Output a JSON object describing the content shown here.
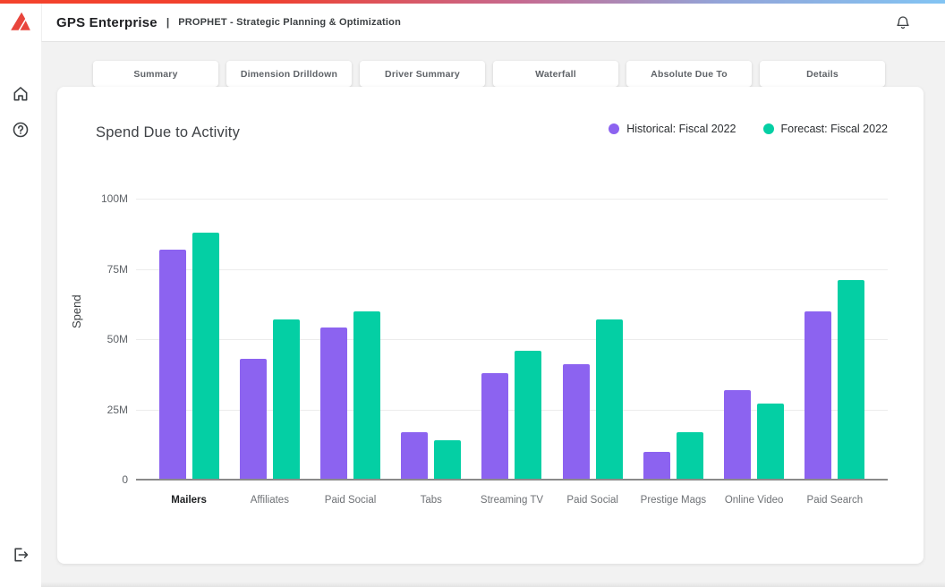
{
  "topbar": {
    "brand": "GPS Enterprise",
    "separator": "|",
    "subtitle": "PROPHET - Strategic Planning & Optimization",
    "bell_icon": "bell-icon"
  },
  "sidebar": {
    "logo_icon": "brand-logo",
    "items": [
      {
        "icon": "home-icon"
      },
      {
        "icon": "help-icon"
      },
      {
        "icon": "logout-icon"
      }
    ]
  },
  "tabs": [
    {
      "label": "Summary"
    },
    {
      "label": "Dimension Drilldown"
    },
    {
      "label": "Driver Summary"
    },
    {
      "label": "Waterfall"
    },
    {
      "label": "Absolute Due To"
    },
    {
      "label": "Details"
    }
  ],
  "chart_data": {
    "type": "bar",
    "title": "Spend Due to Activity",
    "xlabel": "",
    "ylabel": "Spend",
    "unit": "M",
    "ylim": [
      0,
      100
    ],
    "grid": true,
    "legend_position": "top-right",
    "yticks": [
      {
        "label": "100M",
        "value": 100
      },
      {
        "label": "75M",
        "value": 75
      },
      {
        "label": "50M",
        "value": 50
      },
      {
        "label": "25M",
        "value": 25
      },
      {
        "label": "0",
        "value": 0
      }
    ],
    "categories": [
      "Mailers",
      "Affiliates",
      "Paid Social",
      "Tabs",
      "Streaming TV",
      "Paid Social",
      "Prestige Mags",
      "Online Video",
      "Paid Search"
    ],
    "emphasized_category": "Mailers",
    "series": [
      {
        "name": "Historical: Fiscal 2022",
        "color": "#8C63F0",
        "values": [
          82,
          43,
          54,
          17,
          38,
          41,
          10,
          32,
          60
        ]
      },
      {
        "name": "Forecast: Fiscal 2022",
        "color": "#04CFA4",
        "values": [
          88,
          57,
          60,
          14,
          46,
          57,
          17,
          27,
          71
        ]
      }
    ]
  }
}
